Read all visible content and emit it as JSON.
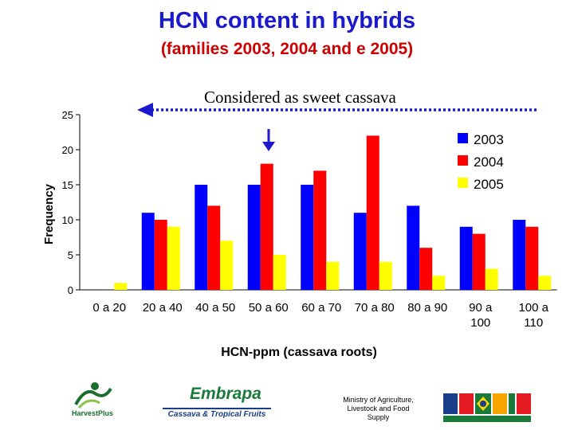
{
  "chart_data": {
    "type": "bar",
    "title": "HCN content in  hybrids",
    "subtitle": "(families 2003, 2004 and e 2005)",
    "annotation": "Considered as sweet cassava",
    "xlabel": "HCN-ppm (cassava roots)",
    "ylabel": "Frequency",
    "ylim": [
      0,
      25
    ],
    "yticks": [
      "0",
      "5",
      "10",
      "15",
      "20",
      "25"
    ],
    "yticks_values": [
      0,
      5,
      10,
      15,
      20,
      25
    ],
    "categories": [
      "0 a 20",
      "20 a 40",
      "40 a 50",
      "50 a 60",
      "60 a 70",
      "70 a 80",
      "80 a 90",
      "90 a 100",
      "100 a 110"
    ],
    "category_lines": [
      [
        "0 a 20"
      ],
      [
        "20 a 40"
      ],
      [
        "40 a 50"
      ],
      [
        "50 a 60"
      ],
      [
        "60 a 70"
      ],
      [
        "70 a 80"
      ],
      [
        "80 a 90"
      ],
      [
        "90 a",
        "100"
      ],
      [
        "100 a",
        "110"
      ]
    ],
    "series": [
      {
        "name": "2003",
        "color": "#0000ff",
        "values": [
          0,
          11,
          15,
          15,
          15,
          11,
          12,
          9,
          10
        ]
      },
      {
        "name": "2004",
        "color": "#ff0000",
        "values": [
          0,
          10,
          12,
          18,
          17,
          22,
          6,
          8,
          9
        ]
      },
      {
        "name": "2005",
        "color": "#ffff00",
        "values": [
          1,
          9,
          7,
          5,
          4,
          4,
          2,
          3,
          2
        ]
      }
    ],
    "legend_position": "top-right",
    "grid": false
  },
  "footer": {
    "ministry_line1": "Ministry of Agriculture,",
    "ministry_line2": "Livestock and Food",
    "ministry_line3": "Supply",
    "embrapa_word": "Embrapa",
    "embrapa_sub": "Cassava & Tropical Fruits",
    "harvestplus_word": "HarvestPlus"
  }
}
